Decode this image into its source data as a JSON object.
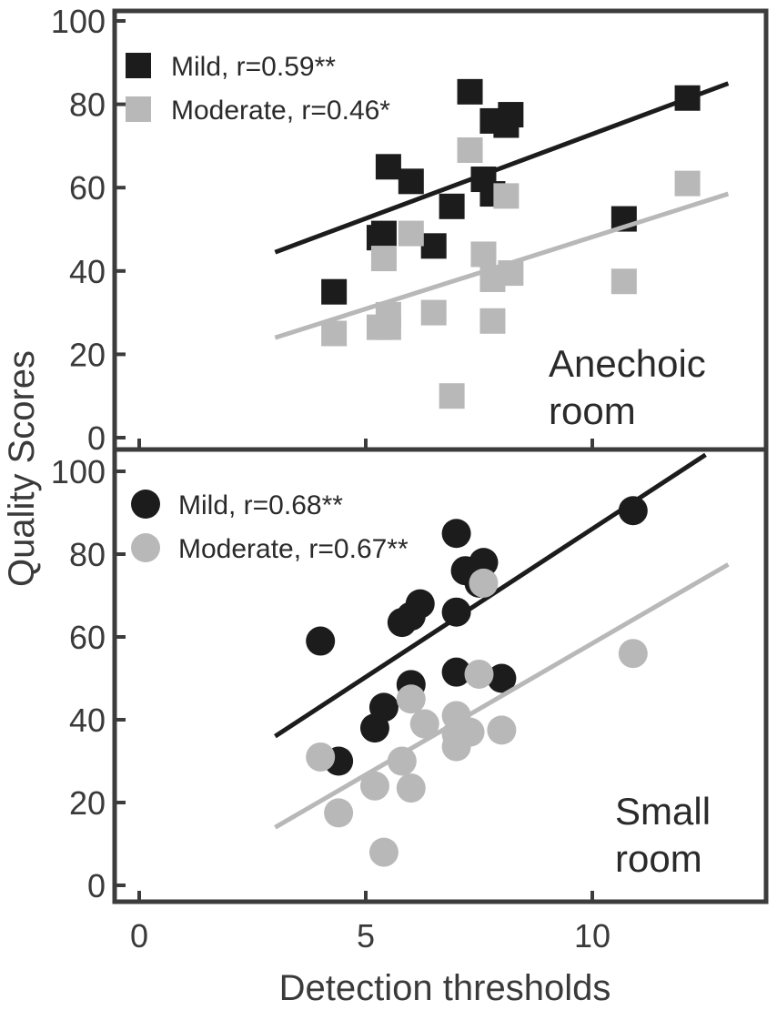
{
  "colors": {
    "mild": "#1c1c1c",
    "moderate": "#b8b8b8",
    "frame": "#3c3c3c"
  },
  "chart_data": [
    {
      "type": "scatter",
      "panel": "top",
      "marker": "square",
      "room_label": [
        "Anechoic",
        "room"
      ],
      "xlim": [
        -0.5,
        14
      ],
      "ylim": [
        -3,
        105
      ],
      "yticks": [
        0,
        20,
        40,
        60,
        80,
        100
      ],
      "grid": false,
      "legend_placement": "top-left",
      "series": [
        {
          "name": "Mild, r=0.59**",
          "color_key": "mild",
          "points": [
            [
              4.3,
              35
            ],
            [
              5.3,
              48
            ],
            [
              5.4,
              49
            ],
            [
              5.5,
              65
            ],
            [
              6.0,
              61.5
            ],
            [
              6.5,
              46
            ],
            [
              6.9,
              55.5
            ],
            [
              7.3,
              83
            ],
            [
              7.6,
              62
            ],
            [
              7.8,
              76
            ],
            [
              7.8,
              58.5
            ],
            [
              8.1,
              75
            ],
            [
              8.2,
              77.5
            ],
            [
              10.7,
              52.5
            ],
            [
              12.1,
              81.5
            ]
          ],
          "fit": [
            [
              3.0,
              44.5
            ],
            [
              13.0,
              85.0
            ]
          ]
        },
        {
          "name": "Moderate, r=0.46*",
          "color_key": "moderate",
          "points": [
            [
              4.3,
              25
            ],
            [
              5.3,
              26.5
            ],
            [
              5.4,
              43
            ],
            [
              5.5,
              26.5
            ],
            [
              5.5,
              29.5
            ],
            [
              6.0,
              49
            ],
            [
              6.5,
              30
            ],
            [
              6.9,
              10
            ],
            [
              7.3,
              69
            ],
            [
              7.6,
              44
            ],
            [
              7.8,
              38
            ],
            [
              7.8,
              28
            ],
            [
              8.1,
              58
            ],
            [
              8.2,
              39.5
            ],
            [
              10.7,
              37.5
            ],
            [
              12.1,
              61
            ]
          ],
          "fit": [
            [
              3.0,
              24.0
            ],
            [
              13.0,
              58.5
            ]
          ]
        }
      ]
    },
    {
      "type": "scatter",
      "panel": "bottom",
      "marker": "circle",
      "room_label": [
        "Small",
        "room"
      ],
      "xlim": [
        -0.5,
        14
      ],
      "ylim": [
        -3,
        105
      ],
      "yticks": [
        0,
        20,
        40,
        60,
        80,
        100
      ],
      "grid": false,
      "legend_placement": "top-left",
      "series": [
        {
          "name": "Mild, r=0.68**",
          "color_key": "mild",
          "points": [
            [
              4.0,
              59
            ],
            [
              4.4,
              30
            ],
            [
              5.2,
              38
            ],
            [
              5.4,
              43
            ],
            [
              5.8,
              63.5
            ],
            [
              6.0,
              65
            ],
            [
              6.0,
              48.5
            ],
            [
              6.2,
              68
            ],
            [
              7.0,
              85
            ],
            [
              7.0,
              66
            ],
            [
              7.0,
              51.5
            ],
            [
              7.2,
              76
            ],
            [
              7.5,
              73
            ],
            [
              7.6,
              78
            ],
            [
              8.0,
              50
            ],
            [
              10.9,
              90.5
            ]
          ],
          "fit": [
            [
              3.0,
              36.0
            ],
            [
              12.5,
              104.0
            ]
          ]
        },
        {
          "name": "Moderate, r=0.67**",
          "color_key": "moderate",
          "points": [
            [
              4.0,
              31
            ],
            [
              4.4,
              17.5
            ],
            [
              5.2,
              24
            ],
            [
              5.4,
              8
            ],
            [
              5.8,
              30
            ],
            [
              6.0,
              45
            ],
            [
              6.0,
              23.5
            ],
            [
              6.3,
              39
            ],
            [
              7.0,
              41
            ],
            [
              7.0,
              36.5
            ],
            [
              7.0,
              33.5
            ],
            [
              7.3,
              37
            ],
            [
              7.5,
              51
            ],
            [
              7.6,
              73
            ],
            [
              8.0,
              37.5
            ],
            [
              10.9,
              56
            ]
          ],
          "fit": [
            [
              3.0,
              14.0
            ],
            [
              13.0,
              77.5
            ]
          ]
        }
      ]
    }
  ],
  "axes": {
    "xlabel": "Detection thresholds",
    "ylabel": "Quality Scores",
    "xticks": [
      0,
      5,
      10
    ]
  }
}
